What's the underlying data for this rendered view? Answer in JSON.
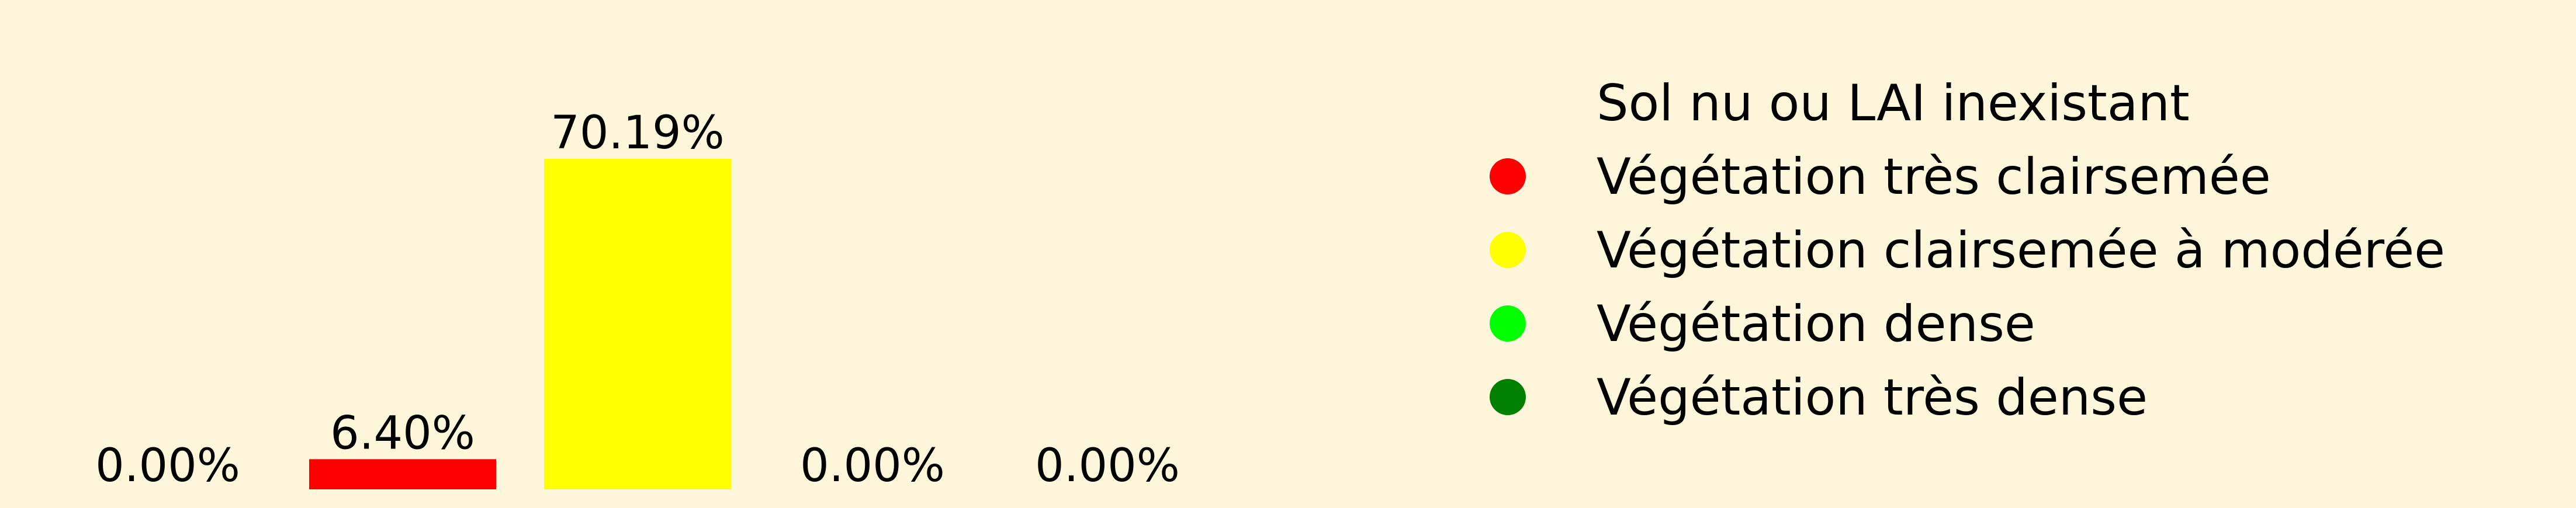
{
  "chart_data": {
    "type": "bar",
    "categories": [
      "Sol nu ou LAI inexistant",
      "Végétation très clairsemée",
      "Végétation clairsemée à modérée",
      "Végétation dense",
      "Végétation très dense"
    ],
    "values": [
      0.0,
      6.4,
      70.19,
      0.0,
      0.0
    ],
    "data_labels": [
      "0.00%",
      "6.40%",
      "70.19%",
      "0.00%",
      "0.00%"
    ],
    "colors": [
      "#fdf6da",
      "#ff0000",
      "#ffff00",
      "#00ff00",
      "#008000"
    ],
    "legend": {
      "placement": "right",
      "entries": [
        {
          "label": "Sol nu ou LAI inexistant",
          "color": "#fdf6da"
        },
        {
          "label": "Végétation très clairsemée",
          "color": "#ff0000"
        },
        {
          "label": "Végétation clairsemée à modérée",
          "color": "#ffff00"
        },
        {
          "label": "Végétation dense",
          "color": "#00ff00"
        },
        {
          "label": "Végétation très dense",
          "color": "#008000"
        }
      ]
    },
    "ylim": [
      0,
      70.19
    ],
    "axes_visible": false,
    "grid": false,
    "background": "#fdf6da"
  }
}
